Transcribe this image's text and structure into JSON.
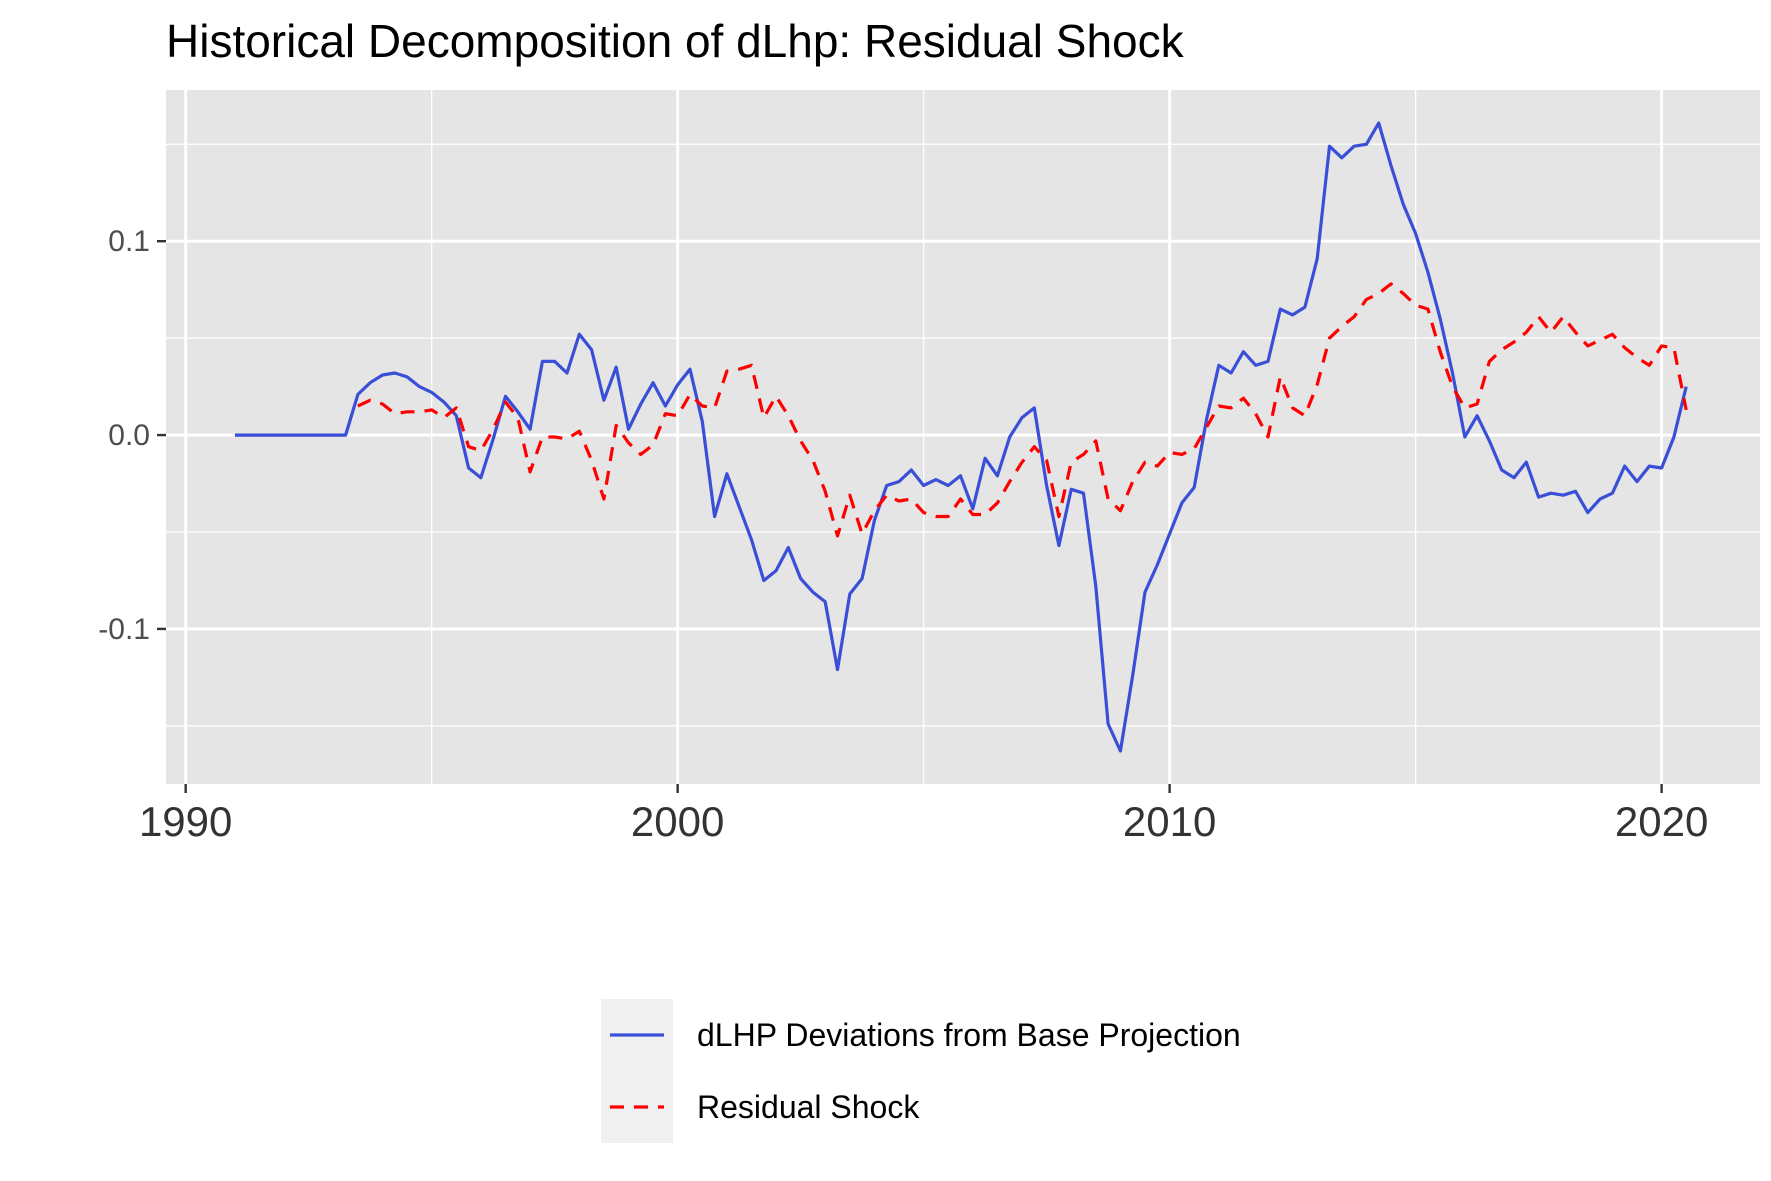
{
  "chart_data": {
    "type": "line",
    "title": "Historical Decomposition of dLhp: Residual Shock",
    "xlabel": "",
    "ylabel": "",
    "xlim": [
      1989.6,
      2022.0
    ],
    "ylim": [
      -0.18,
      0.178
    ],
    "x_ticks": [
      1990,
      2000,
      2010,
      2020
    ],
    "x_tick_labels": [
      "1990",
      "2000",
      "2010",
      "2020"
    ],
    "x_minor_ticks": [
      1995,
      2005,
      2015
    ],
    "y_ticks": [
      -0.1,
      0.0,
      0.1
    ],
    "y_tick_labels": [
      "-0.1",
      "0.0",
      "0.1"
    ],
    "y_minor_ticks": [
      -0.15,
      -0.05,
      0.05,
      0.15
    ],
    "grid": true,
    "legend_position": "bottom",
    "series": [
      {
        "name": "dLHP Deviations from Base Projection",
        "color": "#3a4fd8",
        "line_style": "solid",
        "points": [
          [
            1991.0,
            0.0
          ],
          [
            1991.25,
            0.0
          ],
          [
            1991.5,
            0.0
          ],
          [
            1991.75,
            0.0
          ],
          [
            1992.0,
            0.0
          ],
          [
            1992.25,
            0.0
          ],
          [
            1992.5,
            0.0
          ],
          [
            1992.75,
            0.0
          ],
          [
            1993.0,
            0.0
          ],
          [
            1993.25,
            0.0
          ],
          [
            1993.5,
            0.021
          ],
          [
            1993.75,
            0.027
          ],
          [
            1994.0,
            0.031
          ],
          [
            1994.25,
            0.032
          ],
          [
            1994.5,
            0.03
          ],
          [
            1994.75,
            0.025
          ],
          [
            1995.0,
            0.022
          ],
          [
            1995.25,
            0.017
          ],
          [
            1995.5,
            0.01
          ],
          [
            1995.75,
            -0.017
          ],
          [
            1996.0,
            -0.022
          ],
          [
            1996.25,
            -0.002
          ],
          [
            1996.5,
            0.02
          ],
          [
            1996.75,
            0.012
          ],
          [
            1997.0,
            0.003
          ],
          [
            1997.25,
            0.038
          ],
          [
            1997.5,
            0.038
          ],
          [
            1997.75,
            0.032
          ],
          [
            1998.0,
            0.052
          ],
          [
            1998.25,
            0.044
          ],
          [
            1998.5,
            0.018
          ],
          [
            1998.75,
            0.035
          ],
          [
            1999.0,
            0.003
          ],
          [
            1999.25,
            0.016
          ],
          [
            1999.5,
            0.027
          ],
          [
            1999.75,
            0.015
          ],
          [
            2000.0,
            0.026
          ],
          [
            2000.25,
            0.034
          ],
          [
            2000.5,
            0.007
          ],
          [
            2000.75,
            -0.042
          ],
          [
            2001.0,
            -0.02
          ],
          [
            2001.25,
            -0.037
          ],
          [
            2001.5,
            -0.054
          ],
          [
            2001.75,
            -0.075
          ],
          [
            2002.0,
            -0.07
          ],
          [
            2002.25,
            -0.058
          ],
          [
            2002.5,
            -0.074
          ],
          [
            2002.75,
            -0.081
          ],
          [
            2003.0,
            -0.086
          ],
          [
            2003.25,
            -0.121
          ],
          [
            2003.5,
            -0.082
          ],
          [
            2003.75,
            -0.074
          ],
          [
            2004.0,
            -0.044
          ],
          [
            2004.25,
            -0.026
          ],
          [
            2004.5,
            -0.024
          ],
          [
            2004.75,
            -0.018
          ],
          [
            2005.0,
            -0.026
          ],
          [
            2005.25,
            -0.023
          ],
          [
            2005.5,
            -0.026
          ],
          [
            2005.75,
            -0.021
          ],
          [
            2006.0,
            -0.038
          ],
          [
            2006.25,
            -0.012
          ],
          [
            2006.5,
            -0.021
          ],
          [
            2006.75,
            -0.001
          ],
          [
            2007.0,
            0.009
          ],
          [
            2007.25,
            0.014
          ],
          [
            2007.5,
            -0.026
          ],
          [
            2007.75,
            -0.057
          ],
          [
            2008.0,
            -0.028
          ],
          [
            2008.25,
            -0.03
          ],
          [
            2008.5,
            -0.078
          ],
          [
            2008.75,
            -0.149
          ],
          [
            2009.0,
            -0.163
          ],
          [
            2009.25,
            -0.124
          ],
          [
            2009.5,
            -0.081
          ],
          [
            2009.75,
            -0.067
          ],
          [
            2010.0,
            -0.051
          ],
          [
            2010.25,
            -0.035
          ],
          [
            2010.5,
            -0.027
          ],
          [
            2010.75,
            0.008
          ],
          [
            2011.0,
            0.036
          ],
          [
            2011.25,
            0.032
          ],
          [
            2011.5,
            0.043
          ],
          [
            2011.75,
            0.036
          ],
          [
            2012.0,
            0.038
          ],
          [
            2012.25,
            0.065
          ],
          [
            2012.5,
            0.062
          ],
          [
            2012.75,
            0.066
          ],
          [
            2013.0,
            0.091
          ],
          [
            2013.25,
            0.149
          ],
          [
            2013.5,
            0.143
          ],
          [
            2013.75,
            0.149
          ],
          [
            2014.0,
            0.15
          ],
          [
            2014.25,
            0.161
          ],
          [
            2014.5,
            0.139
          ],
          [
            2014.75,
            0.119
          ],
          [
            2015.0,
            0.104
          ],
          [
            2015.25,
            0.084
          ],
          [
            2015.5,
            0.06
          ],
          [
            2015.75,
            0.032
          ],
          [
            2016.0,
            -0.001
          ],
          [
            2016.25,
            0.01
          ],
          [
            2016.5,
            -0.003
          ],
          [
            2016.75,
            -0.018
          ],
          [
            2017.0,
            -0.022
          ],
          [
            2017.25,
            -0.014
          ],
          [
            2017.5,
            -0.032
          ],
          [
            2017.75,
            -0.03
          ],
          [
            2018.0,
            -0.031
          ],
          [
            2018.25,
            -0.029
          ],
          [
            2018.5,
            -0.04
          ],
          [
            2018.75,
            -0.033
          ],
          [
            2019.0,
            -0.03
          ],
          [
            2019.25,
            -0.016
          ],
          [
            2019.5,
            -0.024
          ],
          [
            2019.75,
            -0.016
          ],
          [
            2020.0,
            -0.017
          ],
          [
            2020.25,
            -0.001
          ],
          [
            2020.5,
            0.025
          ]
        ]
      },
      {
        "name": "Residual Shock",
        "color": "#ff0000",
        "line_style": "dashed",
        "points": [
          [
            1993.5,
            0.015
          ],
          [
            1993.75,
            0.018
          ],
          [
            1994.0,
            0.016
          ],
          [
            1994.25,
            0.011
          ],
          [
            1994.5,
            0.012
          ],
          [
            1994.75,
            0.012
          ],
          [
            1995.0,
            0.013
          ],
          [
            1995.25,
            0.009
          ],
          [
            1995.5,
            0.014
          ],
          [
            1995.75,
            -0.006
          ],
          [
            1996.0,
            -0.008
          ],
          [
            1996.25,
            0.003
          ],
          [
            1996.5,
            0.017
          ],
          [
            1996.75,
            0.009
          ],
          [
            1997.0,
            -0.019
          ],
          [
            1997.25,
            -0.001
          ],
          [
            1997.5,
            -0.001
          ],
          [
            1997.75,
            -0.002
          ],
          [
            1998.0,
            0.002
          ],
          [
            1998.25,
            -0.013
          ],
          [
            1998.5,
            -0.033
          ],
          [
            1998.75,
            0.005
          ],
          [
            1999.0,
            -0.004
          ],
          [
            1999.25,
            -0.01
          ],
          [
            1999.5,
            -0.005
          ],
          [
            1999.75,
            0.011
          ],
          [
            2000.0,
            0.01
          ],
          [
            2000.25,
            0.021
          ],
          [
            2000.5,
            0.015
          ],
          [
            2000.75,
            0.014
          ],
          [
            2001.0,
            0.033
          ],
          [
            2001.25,
            0.034
          ],
          [
            2001.5,
            0.036
          ],
          [
            2001.75,
            0.009
          ],
          [
            2002.0,
            0.02
          ],
          [
            2002.25,
            0.01
          ],
          [
            2002.5,
            -0.003
          ],
          [
            2002.75,
            -0.013
          ],
          [
            2003.0,
            -0.029
          ],
          [
            2003.25,
            -0.052
          ],
          [
            2003.5,
            -0.031
          ],
          [
            2003.75,
            -0.051
          ],
          [
            2004.0,
            -0.039
          ],
          [
            2004.25,
            -0.031
          ],
          [
            2004.5,
            -0.034
          ],
          [
            2004.75,
            -0.033
          ],
          [
            2005.0,
            -0.04
          ],
          [
            2005.25,
            -0.042
          ],
          [
            2005.5,
            -0.042
          ],
          [
            2005.75,
            -0.033
          ],
          [
            2006.0,
            -0.041
          ],
          [
            2006.25,
            -0.041
          ],
          [
            2006.5,
            -0.035
          ],
          [
            2006.75,
            -0.024
          ],
          [
            2007.0,
            -0.014
          ],
          [
            2007.25,
            -0.006
          ],
          [
            2007.5,
            -0.013
          ],
          [
            2007.75,
            -0.042
          ],
          [
            2008.0,
            -0.014
          ],
          [
            2008.25,
            -0.01
          ],
          [
            2008.5,
            -0.003
          ],
          [
            2008.75,
            -0.033
          ],
          [
            2009.0,
            -0.039
          ],
          [
            2009.25,
            -0.024
          ],
          [
            2009.5,
            -0.014
          ],
          [
            2009.75,
            -0.016
          ],
          [
            2010.0,
            -0.009
          ],
          [
            2010.25,
            -0.01
          ],
          [
            2010.5,
            -0.007
          ],
          [
            2010.75,
            0.004
          ],
          [
            2011.0,
            0.015
          ],
          [
            2011.25,
            0.014
          ],
          [
            2011.5,
            0.019
          ],
          [
            2011.75,
            0.011
          ],
          [
            2012.0,
            -0.001
          ],
          [
            2012.25,
            0.03
          ],
          [
            2012.5,
            0.014
          ],
          [
            2012.75,
            0.01
          ],
          [
            2013.0,
            0.026
          ],
          [
            2013.25,
            0.05
          ],
          [
            2013.5,
            0.056
          ],
          [
            2013.75,
            0.061
          ],
          [
            2014.0,
            0.07
          ],
          [
            2014.25,
            0.073
          ],
          [
            2014.5,
            0.078
          ],
          [
            2014.75,
            0.073
          ],
          [
            2015.0,
            0.067
          ],
          [
            2015.25,
            0.065
          ],
          [
            2015.5,
            0.043
          ],
          [
            2015.75,
            0.025
          ],
          [
            2016.0,
            0.014
          ],
          [
            2016.25,
            0.016
          ],
          [
            2016.5,
            0.038
          ],
          [
            2016.75,
            0.044
          ],
          [
            2017.0,
            0.048
          ],
          [
            2017.25,
            0.053
          ],
          [
            2017.5,
            0.061
          ],
          [
            2017.75,
            0.053
          ],
          [
            2018.0,
            0.061
          ],
          [
            2018.25,
            0.053
          ],
          [
            2018.5,
            0.046
          ],
          [
            2018.75,
            0.049
          ],
          [
            2019.0,
            0.052
          ],
          [
            2019.25,
            0.045
          ],
          [
            2019.5,
            0.04
          ],
          [
            2019.75,
            0.036
          ],
          [
            2020.0,
            0.046
          ],
          [
            2020.25,
            0.045
          ],
          [
            2020.5,
            0.013
          ]
        ]
      }
    ]
  },
  "colors": {
    "panel_background": "#e5e5e5",
    "grid": "#ffffff",
    "legend_key_background": "#f0f0f0",
    "axis_tick": "#333333"
  }
}
